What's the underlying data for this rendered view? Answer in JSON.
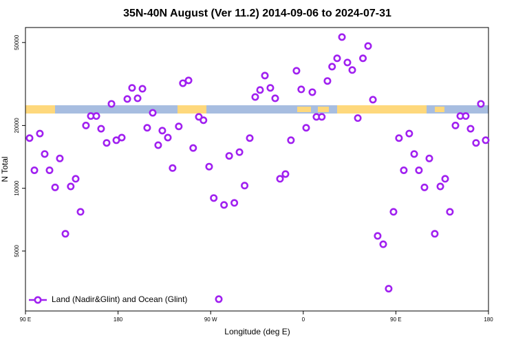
{
  "chart_data": {
    "type": "scatter",
    "title": "35N-40N August (Ver 11.2)   2014-09-06 to 2024-07-31",
    "x_label": "Longitude (deg E)",
    "y_label": "N Total",
    "x": [
      94,
      98.7,
      104,
      108.7,
      113.4,
      118.8,
      123.4,
      128.8,
      134,
      138.8,
      143.5,
      148.8,
      153.5,
      158.9,
      163.5,
      168.9,
      173.6,
      178.3,
      183.6,
      189,
      193.6,
      199,
      203.7,
      208.3,
      213.7,
      219,
      223,
      228.4,
      233,
      239,
      243,
      248.5,
      253,
      258.5,
      263,
      268.5,
      273,
      277.9,
      283,
      288,
      293,
      298,
      303,
      308,
      313.3,
      318,
      322.7,
      328,
      332.7,
      337.4,
      342.7,
      348,
      353.4,
      358,
      362.8,
      368.8,
      372.8,
      378,
      383.5,
      388,
      392.9,
      397.6,
      402.9,
      407.6,
      413,
      418,
      423,
      427.7,
      432.3,
      437.7,
      443,
      447.7,
      453,
      457.7,
      463,
      467.8,
      472.4,
      477.8,
      482.5,
      487.8,
      493.2,
      497.9,
      502.5,
      507.9,
      512.6,
      517.9,
      522.6,
      527.9,
      532.6,
      537.3
    ],
    "series": [
      {
        "name": "Land (Nadir&Glint) and Ocean (Glint)",
        "color": "#a020f0",
        "values": [
          17400,
          12200,
          18300,
          14600,
          12200,
          10100,
          13900,
          6050,
          10200,
          11100,
          7710,
          20000,
          22200,
          22200,
          19300,
          16500,
          25400,
          17000,
          17500,
          26800,
          30300,
          27000,
          30000,
          19500,
          23000,
          16100,
          18900,
          17500,
          12500,
          19800,
          31900,
          32900,
          15600,
          22000,
          21200,
          12700,
          8980,
          2940,
          8320,
          14300,
          8510,
          14900,
          10300,
          17400,
          27400,
          29600,
          34700,
          30300,
          27000,
          11100,
          11700,
          17000,
          36600,
          29800,
          19500,
          28900,
          22000,
          22000,
          32700,
          38300,
          42000,
          53100,
          40100,
          36900,
          21700,
          42000,
          48100,
          26600,
          5910,
          5390,
          3300,
          7710,
          17400,
          12200,
          18300,
          14600,
          12200,
          10100,
          13900,
          6050,
          10200,
          11100,
          7710,
          20000,
          22200,
          22200,
          19300,
          16500,
          25400,
          17000
        ]
      }
    ],
    "xlim": [
      90,
      540
    ],
    "xticks": [
      {
        "value": 90,
        "label": "90 E"
      },
      180,
      {
        "value": 270,
        "label": "90 W"
      },
      {
        "value": 360,
        "label": "0"
      },
      {
        "value": 450,
        "label": "90 E"
      },
      {
        "value": 540,
        "label": "180"
      }
    ],
    "ylim": [
      2580,
      59000
    ],
    "yticks": [
      5000,
      10000,
      20000,
      50000
    ],
    "y_log": true,
    "legend": "lower left"
  }
}
